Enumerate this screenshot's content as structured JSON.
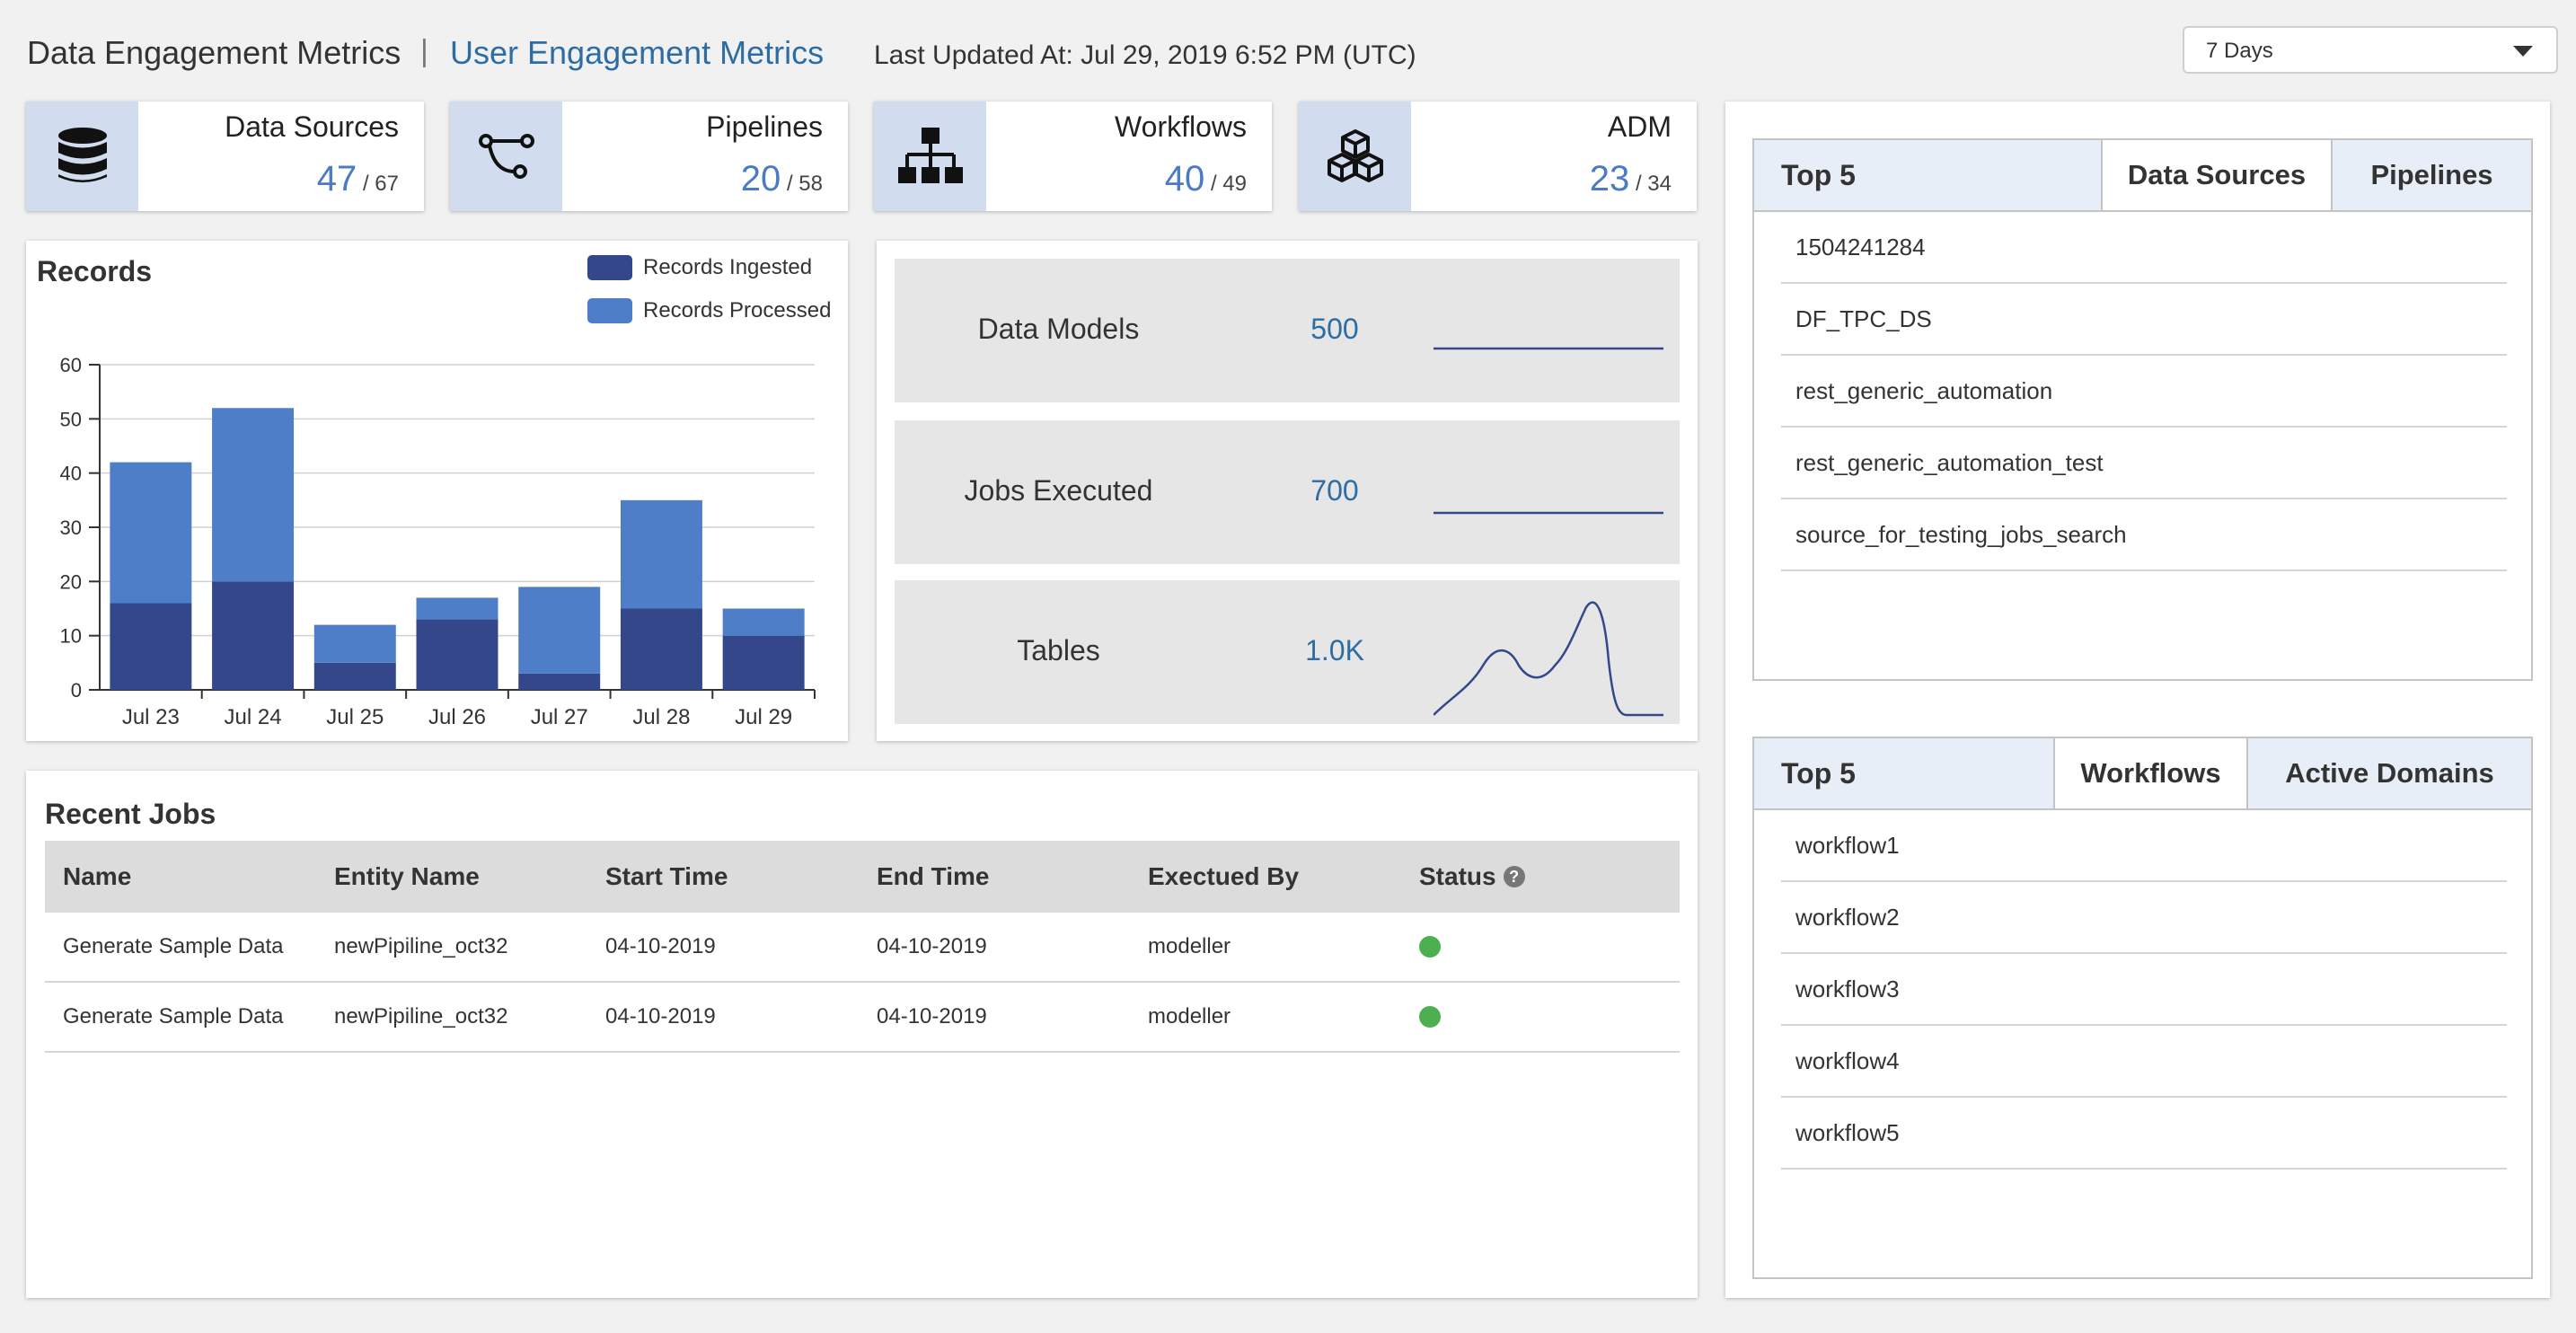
{
  "header": {
    "title": "Data Engagement Metrics",
    "separator": "|",
    "link": "User Engagement Metrics",
    "last_updated": "Last Updated At: Jul 29, 2019 6:52 PM (UTC)",
    "range_select": "7 Days"
  },
  "stats": [
    {
      "label": "Data Sources",
      "value": "47",
      "total": "/ 67",
      "icon": "database-icon"
    },
    {
      "label": "Pipelines",
      "value": "20",
      "total": "/ 58",
      "icon": "pipeline-icon"
    },
    {
      "label": "Workflows",
      "value": "40",
      "total": "/ 49",
      "icon": "workflow-icon"
    },
    {
      "label": "ADM",
      "value": "23",
      "total": "/ 34",
      "icon": "cubes-icon"
    }
  ],
  "records": {
    "title": "Records"
  },
  "chart_data": {
    "type": "bar",
    "stacked": true,
    "title": "Records",
    "categories": [
      "Jul 23",
      "Jul 24",
      "Jul 25",
      "Jul 26",
      "Jul 27",
      "Jul 28",
      "Jul 29"
    ],
    "series": [
      {
        "name": "Records Ingested",
        "color": "#34478a",
        "values": [
          16,
          20,
          5,
          13,
          3,
          15,
          10
        ]
      },
      {
        "name": "Records Processed",
        "color": "#4f7ec8",
        "values": [
          26,
          32,
          7,
          4,
          16,
          20,
          5
        ]
      }
    ],
    "ylim": [
      0,
      60
    ],
    "yticks": [
      "0",
      "10",
      "20",
      "30",
      "40",
      "50",
      "60"
    ],
    "grid": true,
    "legend": "top-right"
  },
  "metrics": [
    {
      "label": "Data Models",
      "value": "500"
    },
    {
      "label": "Jobs Executed",
      "value": "700"
    },
    {
      "label": "Tables",
      "value": "1.0K"
    }
  ],
  "jobs": {
    "title": "Recent Jobs",
    "columns": [
      "Name",
      "Entity Name",
      "Start Time",
      "End Time",
      "Exectued By",
      "Status"
    ],
    "rows": [
      {
        "name": "Generate Sample Data",
        "entity": "newPipiline_oct32",
        "start": "04-10-2019",
        "end": "04-10-2019",
        "by": "modeller",
        "status": "success"
      },
      {
        "name": "Generate Sample Data",
        "entity": "newPipiline_oct32",
        "start": "04-10-2019",
        "end": "04-10-2019",
        "by": "modeller",
        "status": "success"
      }
    ],
    "status_color": "#4caf50"
  },
  "top5_sources": {
    "title": "Top 5",
    "tabs": [
      "Data Sources",
      "Pipelines"
    ],
    "items": [
      "1504241284",
      "DF_TPC_DS",
      "rest_generic_automation",
      "rest_generic_automation_test",
      "source_for_testing_jobs_search"
    ]
  },
  "top5_workflows": {
    "title": "Top 5",
    "tabs": [
      "Workflows",
      "Active Domains"
    ],
    "items": [
      "workflow1",
      "workflow2",
      "workflow3",
      "workflow4",
      "workflow5"
    ]
  },
  "colors": {
    "accent": "#2e6da4",
    "stat_value": "#4a7bc4",
    "icon_bg": "#d2dcef"
  }
}
